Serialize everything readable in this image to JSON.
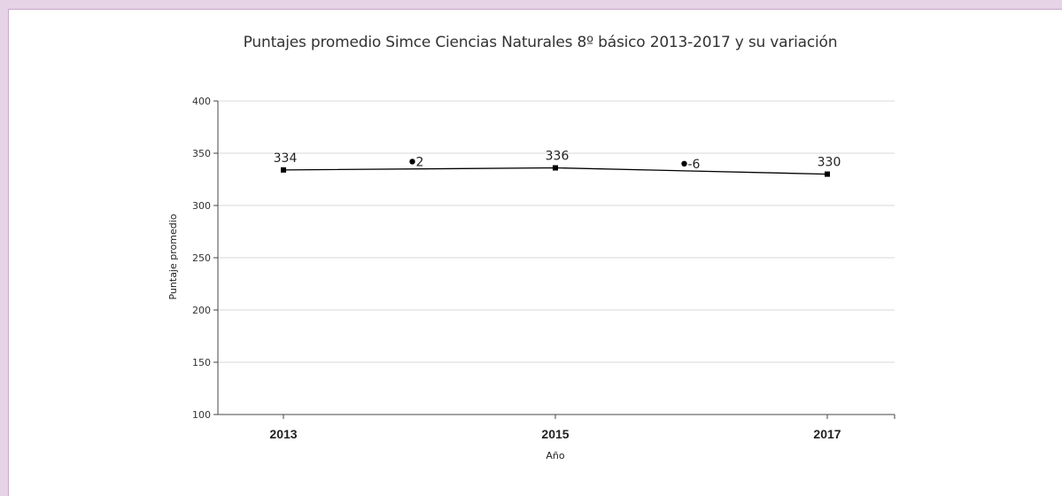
{
  "chart_data": {
    "type": "line",
    "title": "Puntajes promedio Simce Ciencias Naturales 8º básico 2013-2017 y su variación",
    "xlabel": "Año",
    "ylabel": "Puntaje promedio",
    "ylim": [
      100,
      400
    ],
    "yticks": [
      100,
      150,
      200,
      250,
      300,
      350,
      400
    ],
    "xticks": [
      "2013",
      "2015",
      "2017"
    ],
    "grid": "horizontal",
    "series": [
      {
        "x": [
          "2013",
          "2015",
          "2017"
        ],
        "values": [
          334,
          336,
          330
        ],
        "labels": [
          "334",
          "336",
          "330"
        ],
        "color": "#000000"
      }
    ],
    "variations": [
      {
        "between": [
          "2013",
          "2015"
        ],
        "value": 342,
        "label": "2"
      },
      {
        "between": [
          "2015",
          "2017"
        ],
        "value": 340,
        "label": "-6"
      }
    ]
  }
}
